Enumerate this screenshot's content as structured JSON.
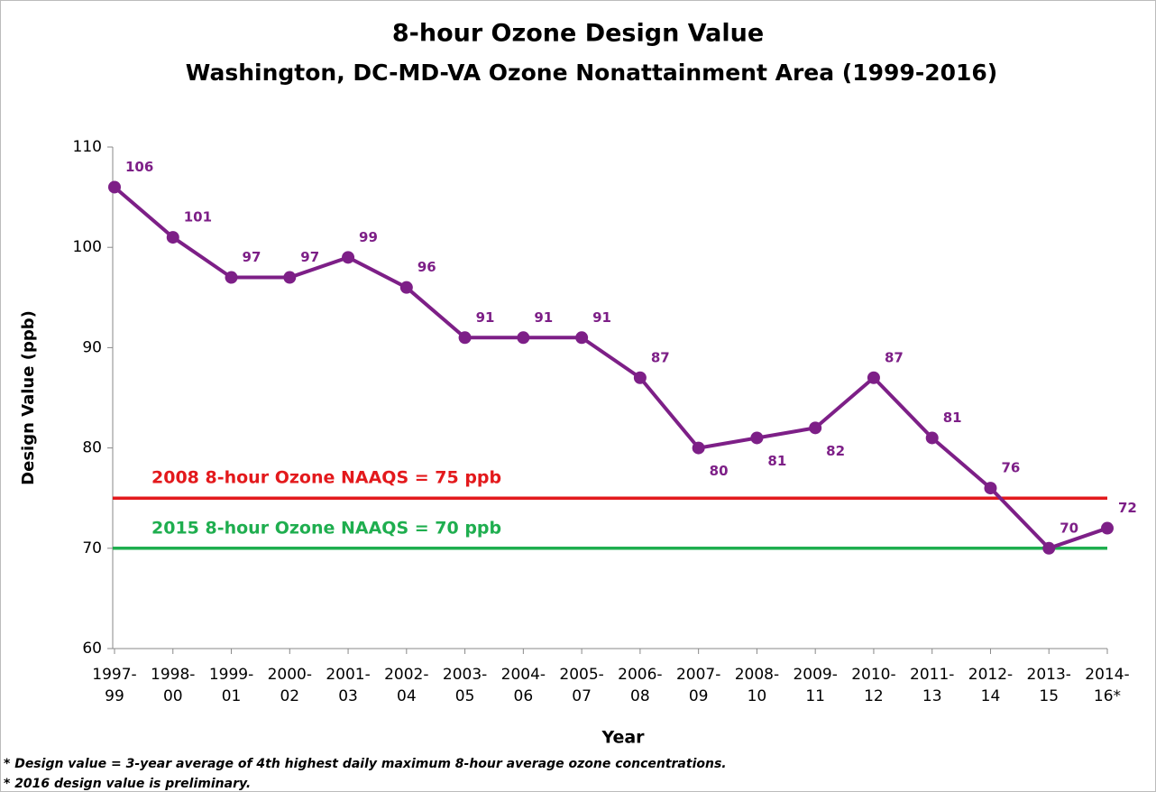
{
  "chart_data": {
    "type": "line",
    "title": "8-hour Ozone Design Value",
    "subtitle": "Washington, DC-MD-VA Ozone Nonattainment Area (1999-2016)",
    "x_label": "Year",
    "y_label": "Design Value (ppb)",
    "categories": [
      "1997-\n99",
      "1998-\n00",
      "1999-\n01",
      "2000-\n02",
      "2001-\n03",
      "2002-\n04",
      "2003-\n05",
      "2004-\n06",
      "2005-\n07",
      "2006-\n08",
      "2007-\n09",
      "2008-\n10",
      "2009-\n11",
      "2010-\n12",
      "2011-\n13",
      "2012-\n14",
      "2013-\n15",
      "2014-\n16*"
    ],
    "series": [
      {
        "name": "Design Value",
        "color": "#7d1f87",
        "values": [
          106,
          101,
          97,
          97,
          99,
          96,
          91,
          91,
          91,
          87,
          80,
          81,
          82,
          87,
          81,
          76,
          70,
          72
        ]
      }
    ],
    "ylim": [
      60,
      110
    ],
    "yticks": [
      60,
      70,
      80,
      90,
      100,
      110
    ],
    "reference_lines": [
      {
        "value": 75,
        "label": "2008 8-hour Ozone NAAQS = 75 ppb",
        "color": "#e3191c"
      },
      {
        "value": 70,
        "label": "2015 8-hour Ozone NAAQS = 70 ppb",
        "color": "#1fae4f"
      }
    ],
    "footnotes": [
      "* Design value = 3-year average of 4th highest daily maximum 8-hour average ozone concentrations.",
      "* 2016 design value is preliminary."
    ]
  }
}
